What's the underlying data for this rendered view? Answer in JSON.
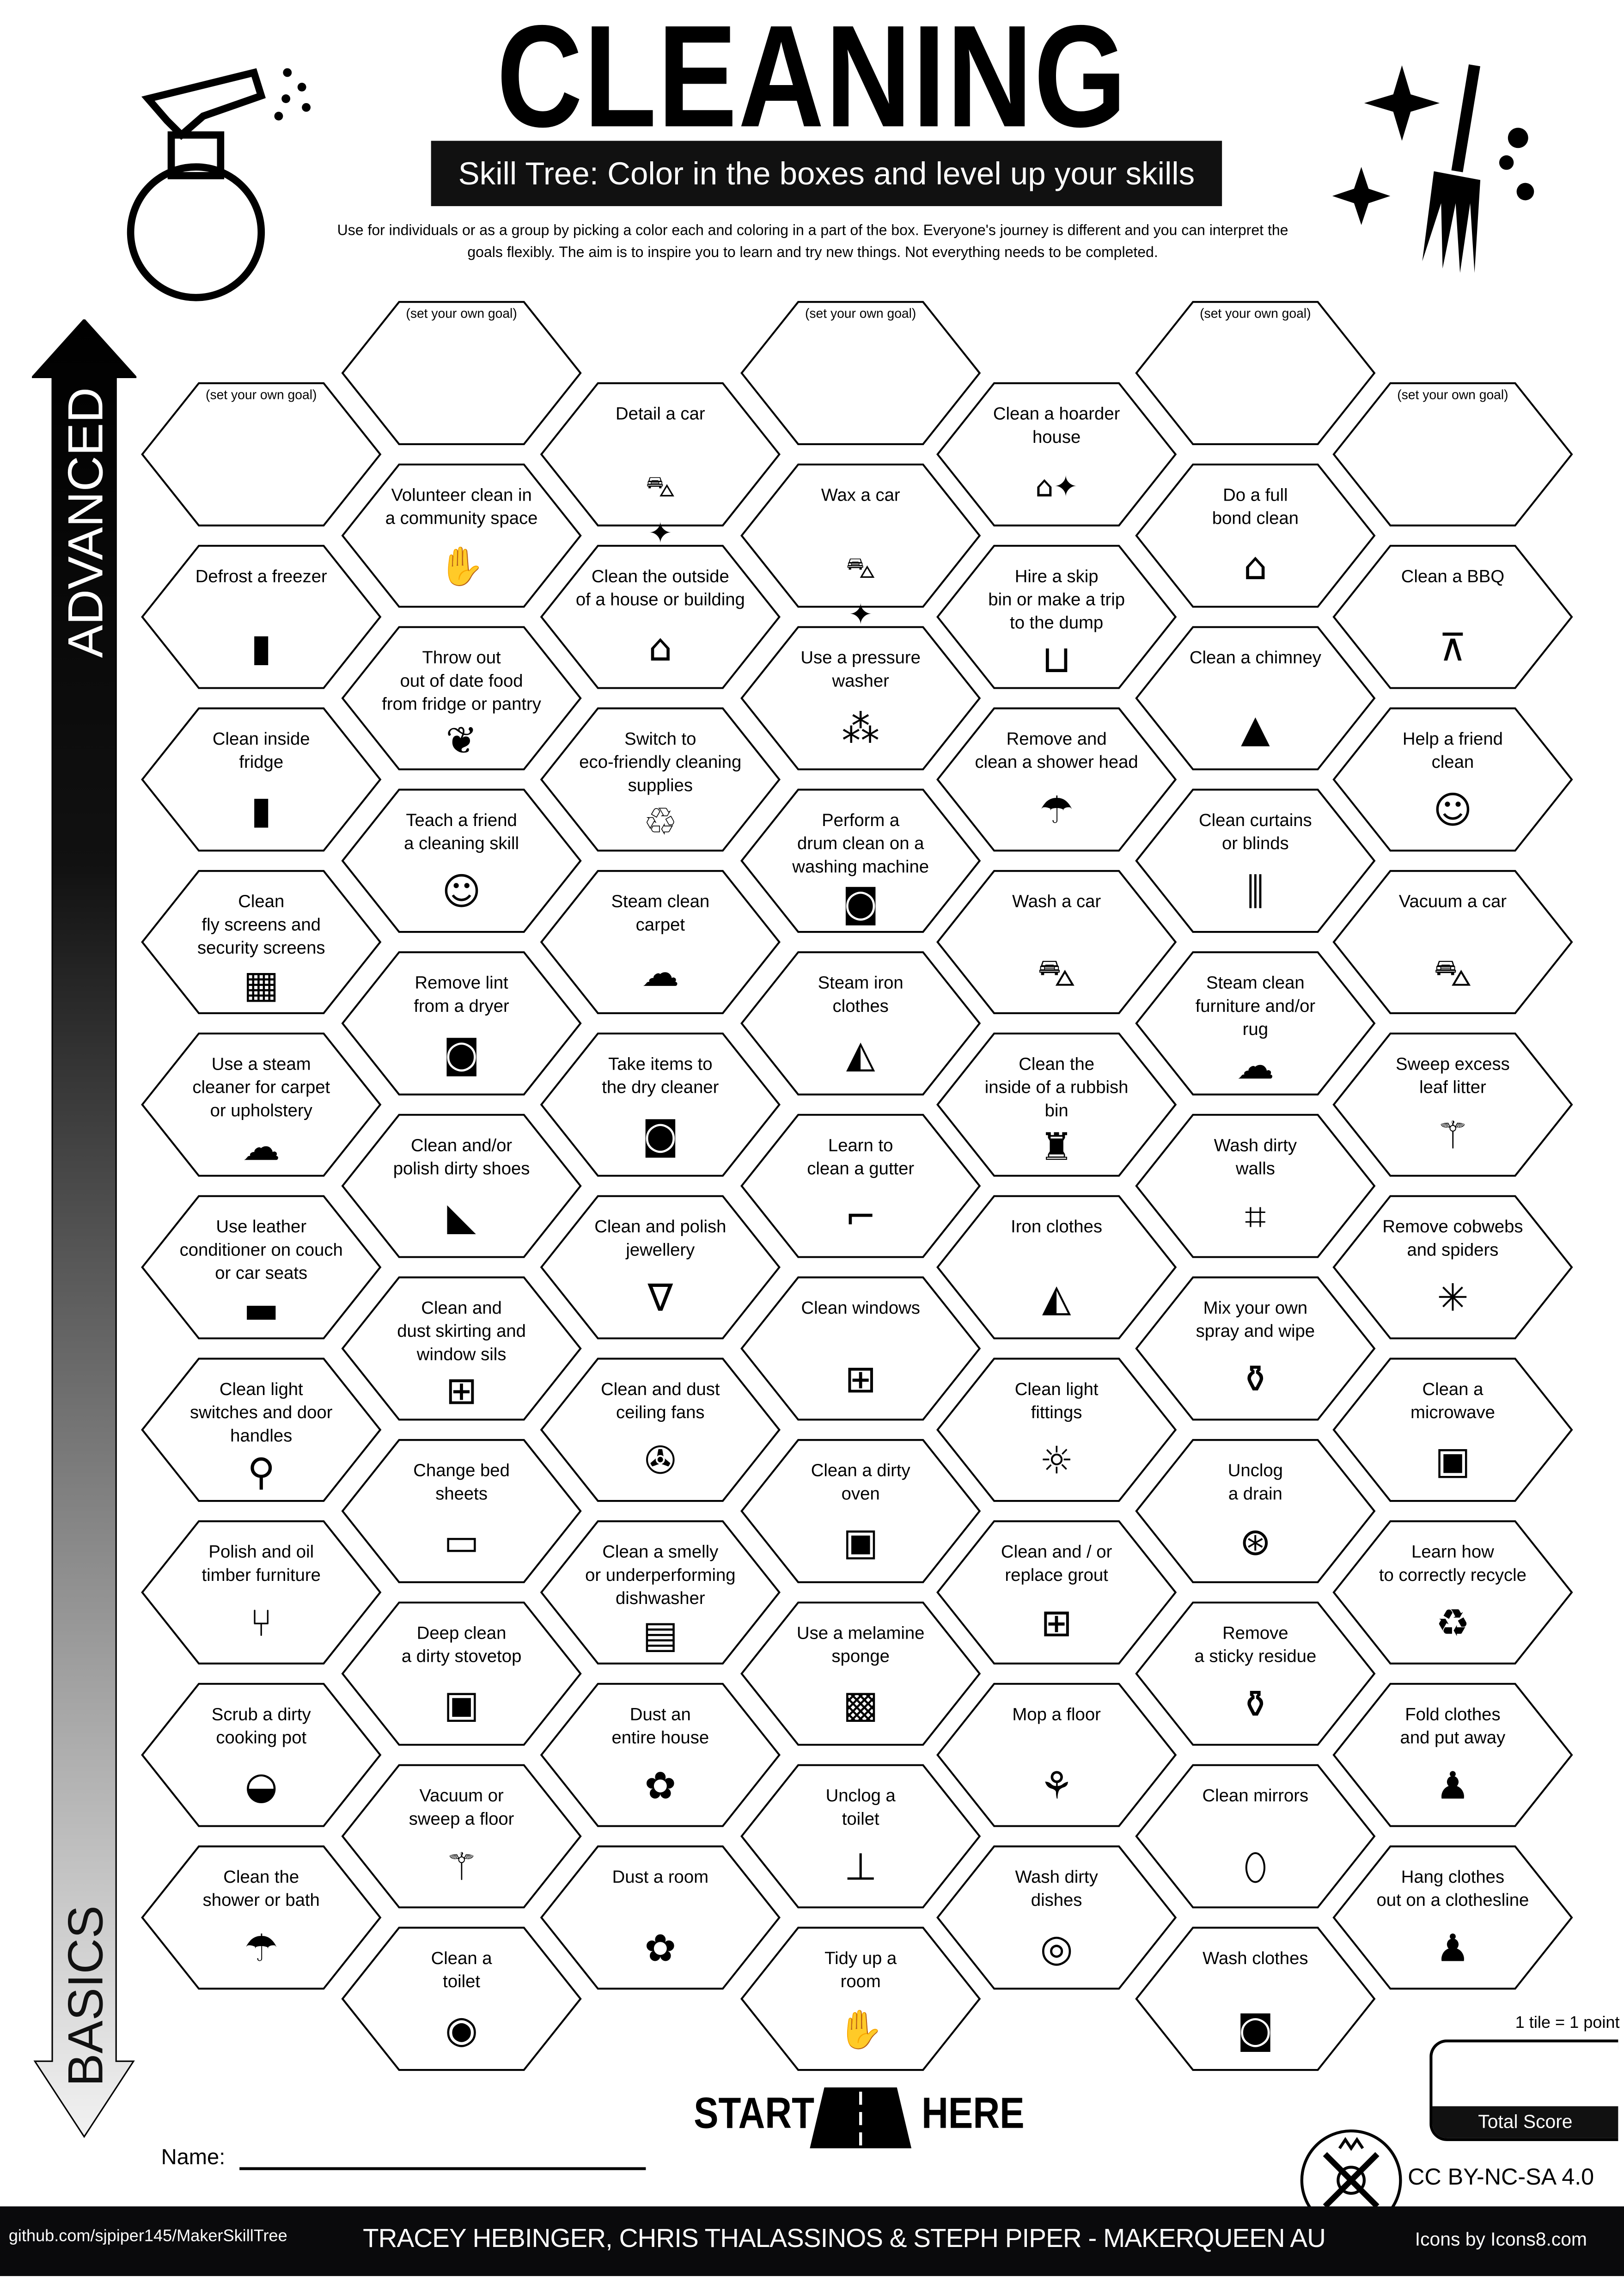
{
  "header": {
    "title": "CLEANING",
    "subtitle": "Skill Tree:  Color in the boxes and level up your skills",
    "description": "Use for individuals or as a group by picking a color each and coloring in a part of the box.  Everyone's journey is different and you can interpret the goals flexibly.  The aim is to inspire you to learn and try new things. Not everything needs to be completed."
  },
  "axis": {
    "top_label": "ADVANCED",
    "bottom_label": "BASICS"
  },
  "colors": {
    "ink": "#000000",
    "footer": "#0a0a0c",
    "paper": "#ffffff"
  },
  "columns": [
    [
      {
        "label": "(set your own goal)",
        "goal": true
      },
      {
        "label": "Defrost a freezer",
        "icon": "fridge-icon"
      },
      {
        "label": "Clean inside\nfridge",
        "icon": "fridge-icon"
      },
      {
        "label": "Clean\nfly screens and\nsecurity screens",
        "icon": "window-screen-icon"
      },
      {
        "label": "Use a steam\ncleaner for carpet\nor upholstery",
        "icon": "steam-icon"
      },
      {
        "label": "Use leather\nconditioner on couch\nor car seats",
        "icon": "couch-icon"
      },
      {
        "label": "Clean light\nswitches and door\nhandles",
        "icon": "door-handle-icon"
      },
      {
        "label": "Polish and oil\ntimber furniture",
        "icon": "chair-icon"
      },
      {
        "label": "Scrub a dirty\ncooking pot",
        "icon": "pot-icon"
      },
      {
        "label": "Clean the\nshower or bath",
        "icon": "shower-icon"
      }
    ],
    [
      {
        "label": "(set your own goal)",
        "goal": true
      },
      {
        "label": "Volunteer clean in\na community space",
        "icon": "volunteer-hand-icon"
      },
      {
        "label": "Throw out\nout of date food\nfrom fridge or pantry",
        "icon": "food-icon"
      },
      {
        "label": "Teach a friend\na cleaning skill",
        "icon": "teacher-icon"
      },
      {
        "label": "Remove lint\nfrom a dryer",
        "icon": "dryer-icon"
      },
      {
        "label": "Clean and/or\npolish dirty shoes",
        "icon": "shoe-icon"
      },
      {
        "label": "Clean and\ndust skirting and\nwindow sils",
        "icon": "window-icon"
      },
      {
        "label": "Change bed\nsheets",
        "icon": "bed-icon"
      },
      {
        "label": "Deep clean\na dirty stovetop",
        "icon": "oven-icon"
      },
      {
        "label": "Vacuum or\nsweep a floor",
        "icon": "broom-icon"
      },
      {
        "label": "Clean a\ntoilet",
        "icon": "toilet-icon"
      }
    ],
    [
      {
        "label": "Detail a car",
        "icon": "car-sparkle-icon"
      },
      {
        "label": "Clean the outside\nof a house or building",
        "icon": "house-icon"
      },
      {
        "label": "Switch to\neco-friendly cleaning\nsupplies",
        "icon": "eco-recycle-icon"
      },
      {
        "label": "Steam clean\ncarpet",
        "icon": "steam-icon"
      },
      {
        "label": "Take items to\nthe dry cleaner",
        "icon": "washing-machine-icon"
      },
      {
        "label": "Clean and polish\njewellery",
        "icon": "necklace-icon"
      },
      {
        "label": "Clean and dust\nceiling fans",
        "icon": "ceiling-fan-icon"
      },
      {
        "label": "Clean a smelly\nor underperforming\ndishwasher",
        "icon": "dishwasher-icon"
      },
      {
        "label": "Dust an\nentire house",
        "icon": "duster-icon"
      },
      {
        "label": "Dust a room",
        "icon": "duster-icon"
      }
    ],
    [
      {
        "label": "(set your own goal)",
        "goal": true
      },
      {
        "label": "Wax a car",
        "icon": "car-sparkle-icon"
      },
      {
        "label": "Use a pressure\nwasher",
        "icon": "pressure-washer-icon"
      },
      {
        "label": "Perform a\ndrum clean on a\nwashing machine",
        "icon": "washing-machine-icon"
      },
      {
        "label": "Steam iron\nclothes",
        "icon": "iron-icon"
      },
      {
        "label": "Learn to\nclean a gutter",
        "icon": "gutter-icon"
      },
      {
        "label": "Clean windows",
        "icon": "window-icon"
      },
      {
        "label": "Clean a dirty\noven",
        "icon": "oven-icon"
      },
      {
        "label": "Use a melamine\nsponge",
        "icon": "sponge-icon"
      },
      {
        "label": "Unclog a\ntoilet",
        "icon": "plunger-icon"
      },
      {
        "label": "Tidy up a\nroom",
        "icon": "hands-icon"
      }
    ],
    [
      {
        "label": "Clean a hoarder\nhouse",
        "icon": "house-sparkle-icon"
      },
      {
        "label": "Hire a skip\nbin or make a trip\nto the dump",
        "icon": "skip-bin-icon"
      },
      {
        "label": "Remove and\nclean a shower head",
        "icon": "shower-icon"
      },
      {
        "label": "Wash a car",
        "icon": "car-icon"
      },
      {
        "label": "Clean the\ninside of a rubbish\nbin",
        "icon": "trash-icon"
      },
      {
        "label": "Iron clothes",
        "icon": "iron-icon"
      },
      {
        "label": "Clean light\nfittings",
        "icon": "light-bulb-icon"
      },
      {
        "label": "Clean and / or\nreplace grout",
        "icon": "tiles-icon"
      },
      {
        "label": "Mop a floor",
        "icon": "mop-icon"
      },
      {
        "label": "Wash dirty\ndishes",
        "icon": "dishes-icon"
      }
    ],
    [
      {
        "label": "(set your own goal)",
        "goal": true
      },
      {
        "label": "Do a full\nbond clean",
        "icon": "house-icon"
      },
      {
        "label": "Clean a chimney",
        "icon": "roof-icon"
      },
      {
        "label": "Clean curtains\nor blinds",
        "icon": "curtains-icon"
      },
      {
        "label": "Steam clean\nfurniture and/or\nrug",
        "icon": "steam-icon"
      },
      {
        "label": "Wash dirty\nwalls",
        "icon": "wall-sparkle-icon"
      },
      {
        "label": "Mix your own\nspray and wipe",
        "icon": "spray-bottle-icon"
      },
      {
        "label": "Unclog\na drain",
        "icon": "drain-icon"
      },
      {
        "label": "Remove\na sticky residue",
        "icon": "spray-bottle-icon"
      },
      {
        "label": "Clean mirrors",
        "icon": "mirror-icon"
      },
      {
        "label": "Wash clothes",
        "icon": "washing-machine-icon"
      }
    ],
    [
      {
        "label": "(set your own goal)",
        "goal": true
      },
      {
        "label": "Clean a BBQ",
        "icon": "bbq-icon"
      },
      {
        "label": "Help a friend\nclean",
        "icon": "teacher-icon"
      },
      {
        "label": "Vacuum a car",
        "icon": "car-icon"
      },
      {
        "label": "Sweep excess\nleaf litter",
        "icon": "broom-icon"
      },
      {
        "label": "Remove cobwebs\nand spiders",
        "icon": "cobweb-icon"
      },
      {
        "label": "Clean a\nmicrowave",
        "icon": "microwave-icon"
      },
      {
        "label": "Learn how\nto correctly recycle",
        "icon": "recycle-icon"
      },
      {
        "label": "Fold clothes\nand put away",
        "icon": "tshirt-icon"
      },
      {
        "label": "Hang clothes\nout on a clothesline",
        "icon": "tshirt-icon"
      }
    ]
  ],
  "start": {
    "left": "START",
    "right": "HERE"
  },
  "name_label": "Name:",
  "score": {
    "tile_info": "1 tile = 1 point",
    "label": "Total Score"
  },
  "license": "CC BY-NC-SA 4.0",
  "footer": {
    "github": "github.com/sjpiper145/MakerSkillTree",
    "authors": "TRACEY HEBINGER, CHRIS THALASSINOS & STEPH PIPER  -  MAKERQUEEN AU",
    "icons_credit": "Icons by Icons8.com"
  }
}
